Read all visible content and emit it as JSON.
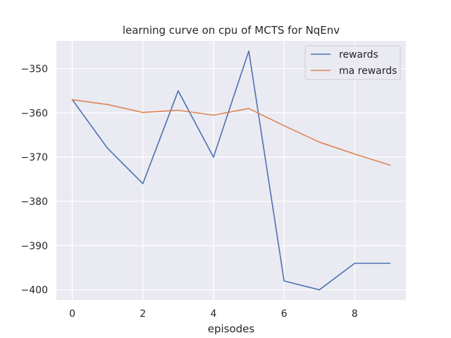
{
  "chart_data": {
    "type": "line",
    "title": "learning curve on cpu of MCTS for NqEnv",
    "xlabel": "episodes",
    "ylabel": "",
    "x": [
      0,
      1,
      2,
      3,
      4,
      5,
      6,
      7,
      8,
      9
    ],
    "xlim": [
      -0.45,
      9.45
    ],
    "ylim": [
      -402.3,
      -343.7
    ],
    "xticks": [
      0,
      2,
      4,
      6,
      8
    ],
    "yticks": [
      -350,
      -360,
      -370,
      -380,
      -390,
      -400
    ],
    "xtick_labels": [
      "0",
      "2",
      "4",
      "6",
      "8"
    ],
    "ytick_labels": [
      "−350",
      "−360",
      "−370",
      "−380",
      "−390",
      "−400"
    ],
    "grid": true,
    "legend_position": "top-right",
    "background": "#eaeaf2",
    "series": [
      {
        "name": "rewards",
        "color": "#4c72b0",
        "values": [
          -357,
          -368,
          -376,
          -355,
          -370,
          -346,
          -398,
          -400,
          -394,
          -394
        ]
      },
      {
        "name": "ma rewards",
        "color": "#dd8452",
        "values": [
          -357,
          -358.1,
          -359.9,
          -359.4,
          -360.5,
          -359.0,
          -362.9,
          -366.6,
          -369.3,
          -371.8
        ]
      }
    ]
  }
}
